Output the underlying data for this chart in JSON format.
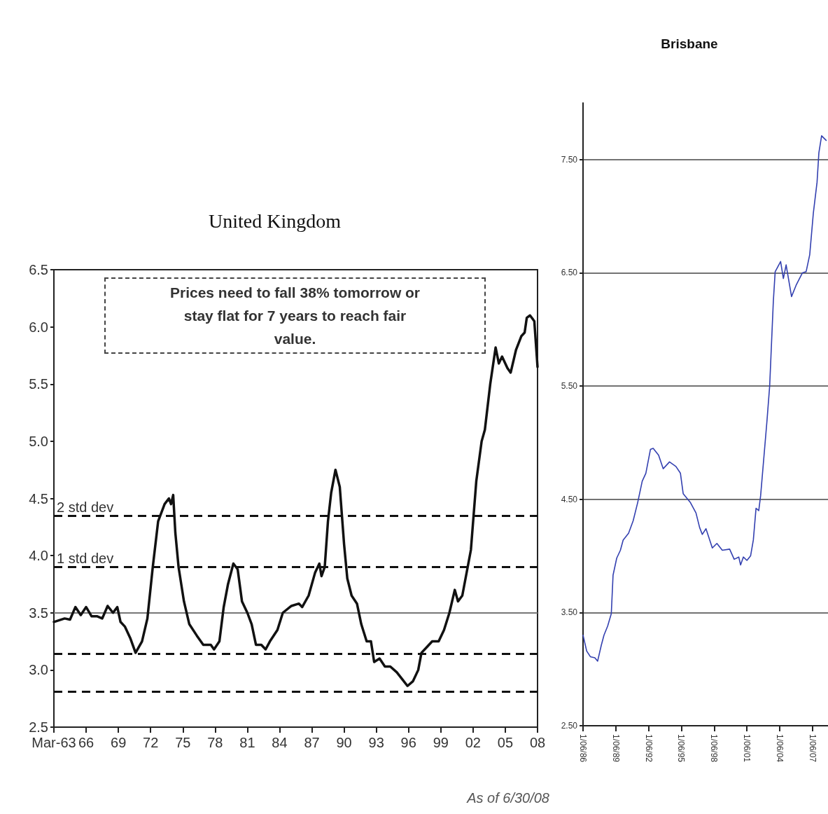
{
  "chart_data": [
    {
      "type": "line",
      "title": "United Kingdom",
      "annotations": [
        "Prices need to fall 38% tomorrow or stay flat for 7 years to reach fair value.",
        "As of 6/30/08"
      ],
      "series": [
        {
          "color": "#111111",
          "x": [
            1963,
            1964,
            1964.5,
            1965,
            1965.5,
            1966,
            1966.5,
            1967,
            1967.5,
            1968,
            1968.5,
            1968.9,
            1969.2,
            1969.6,
            1970.1,
            1970.6,
            1971.2,
            1971.7,
            1972.2,
            1972.7,
            1973.3,
            1973.7,
            1973.9,
            1974.1,
            1974.3,
            1974.6,
            1975.1,
            1975.6,
            1976.3,
            1976.9,
            1977.6,
            1977.9,
            1978.4,
            1978.8,
            1979.2,
            1979.7,
            1980.1,
            1980.5,
            1981,
            1981.4,
            1981.8,
            1982.3,
            1982.7,
            1983.1,
            1983.8,
            1984.3,
            1985.1,
            1985.8,
            1986.1,
            1986.7,
            1987.3,
            1987.7,
            1987.9,
            1988.2,
            1988.5,
            1988.8,
            1989.2,
            1989.6,
            1990,
            1990.3,
            1990.7,
            1991.2,
            1991.6,
            1992.1,
            1992.5,
            1992.8,
            1993.3,
            1993.8,
            1994.3,
            1994.9,
            1995.4,
            1995.9,
            1996.4,
            1996.9,
            1997.2,
            1997.7,
            1998.2,
            1998.8,
            1999.3,
            1999.8,
            2000.3,
            2000.6,
            2001,
            2001.5,
            2001.8,
            2002.3,
            2002.8,
            2003.1,
            2003.6,
            2004.1,
            2004.4,
            2004.7,
            2005.2,
            2005.5,
            2006,
            2006.5,
            2006.8,
            2007,
            2007.3,
            2007.7,
            2008
          ],
          "values": [
            3.42,
            3.45,
            3.44,
            3.55,
            3.48,
            3.55,
            3.47,
            3.47,
            3.45,
            3.56,
            3.5,
            3.55,
            3.42,
            3.38,
            3.28,
            3.15,
            3.25,
            3.45,
            3.9,
            4.3,
            4.45,
            4.5,
            4.45,
            4.53,
            4.2,
            3.9,
            3.6,
            3.4,
            3.3,
            3.22,
            3.22,
            3.18,
            3.25,
            3.55,
            3.75,
            3.93,
            3.88,
            3.6,
            3.5,
            3.4,
            3.22,
            3.22,
            3.18,
            3.25,
            3.35,
            3.5,
            3.56,
            3.58,
            3.55,
            3.65,
            3.85,
            3.93,
            3.82,
            3.9,
            4.3,
            4.55,
            4.75,
            4.6,
            4.1,
            3.8,
            3.65,
            3.58,
            3.4,
            3.25,
            3.25,
            3.07,
            3.1,
            3.03,
            3.03,
            2.98,
            2.92,
            2.86,
            2.9,
            3.0,
            3.15,
            3.2,
            3.25,
            3.25,
            3.35,
            3.5,
            3.7,
            3.6,
            3.65,
            3.9,
            4.05,
            4.65,
            5.0,
            5.1,
            5.5,
            5.82,
            5.68,
            5.74,
            5.64,
            5.6,
            5.8,
            5.92,
            5.95,
            6.08,
            6.1,
            6.05,
            5.65
          ]
        }
      ],
      "xlim": [
        1963,
        2008
      ],
      "xticks": [
        {
          "value": 1963,
          "label": "Mar-63"
        },
        {
          "value": 1966,
          "label": "66"
        },
        {
          "value": 1969,
          "label": "69"
        },
        {
          "value": 1972,
          "label": "72"
        },
        {
          "value": 1975,
          "label": "75"
        },
        {
          "value": 1978,
          "label": "78"
        },
        {
          "value": 1981,
          "label": "81"
        },
        {
          "value": 1984,
          "label": "84"
        },
        {
          "value": 1987,
          "label": "87"
        },
        {
          "value": 1990,
          "label": "90"
        },
        {
          "value": 1993,
          "label": "93"
        },
        {
          "value": 1996,
          "label": "96"
        },
        {
          "value": 1999,
          "label": "99"
        },
        {
          "value": 2002,
          "label": "02"
        },
        {
          "value": 2005,
          "label": "05"
        },
        {
          "value": 2008,
          "label": "08"
        }
      ],
      "ylim": [
        2.5,
        6.5
      ],
      "yticks": [
        2.5,
        {
          "value": 3,
          "label": "3.0"
        },
        3.5,
        {
          "value": 4,
          "label": "4.0"
        },
        4.5,
        {
          "value": 5,
          "label": "5.0"
        },
        5.5,
        {
          "value": 6,
          "label": "6.0"
        },
        6.5
      ],
      "ref_lines": [
        {
          "axis": "y",
          "value": 4.35,
          "label": "2 std dev",
          "color": "#111111",
          "line_style": "dashed"
        },
        {
          "axis": "y",
          "value": 3.9,
          "label": "1 std dev",
          "color": "#111111",
          "line_style": "dashed"
        },
        {
          "axis": "y",
          "value": 3.5,
          "label": null,
          "color": "#777777",
          "line_style": "solid"
        },
        {
          "axis": "y",
          "value": 3.14,
          "label": null,
          "color": "#111111",
          "line_style": "dashed"
        },
        {
          "axis": "y",
          "value": 2.81,
          "label": null,
          "color": "#111111",
          "line_style": "dashed"
        }
      ],
      "grid": false
    },
    {
      "type": "line",
      "title": "Brisbane",
      "series": [
        {
          "color": "#3340b0",
          "x": [
            "1986-06",
            "1986-10",
            "1987-02",
            "1987-07",
            "1987-10",
            "1988-02",
            "1988-05",
            "1988-09",
            "1989-01",
            "1989-03",
            "1989-07",
            "1989-11",
            "1990-02",
            "1990-08",
            "1991-01",
            "1991-06",
            "1991-11",
            "1992-03",
            "1992-08",
            "1992-11",
            "1993-05",
            "1993-10",
            "1994-05",
            "1994-12",
            "1995-05",
            "1995-08",
            "1996-04",
            "1996-10",
            "1997-02",
            "1997-05",
            "1997-09",
            "1998-04",
            "1998-09",
            "1999-03",
            "1999-11",
            "2000-04",
            "2000-09",
            "2000-11",
            "2001-02",
            "2001-06",
            "2001-10",
            "2002-01",
            "2002-04",
            "2002-07",
            "2002-09",
            "2003-04",
            "2003-07",
            "2003-11",
            "2004-01",
            "2004-07",
            "2004-10",
            "2005-01",
            "2005-07",
            "2005-12",
            "2006-07",
            "2006-11",
            "2007-03",
            "2007-07",
            "2007-11",
            "2008-01",
            "2008-04",
            "2008-09"
          ],
          "values": [
            3.3,
            3.16,
            3.11,
            3.1,
            3.07,
            3.21,
            3.3,
            3.38,
            3.49,
            3.83,
            3.98,
            4.05,
            4.14,
            4.2,
            4.31,
            4.47,
            4.66,
            4.73,
            4.94,
            4.95,
            4.89,
            4.77,
            4.83,
            4.79,
            4.73,
            4.55,
            4.47,
            4.38,
            4.25,
            4.19,
            4.24,
            4.07,
            4.11,
            4.05,
            4.06,
            3.97,
            3.99,
            3.92,
            3.99,
            3.96,
            4.0,
            4.14,
            4.42,
            4.4,
            4.53,
            5.19,
            5.5,
            6.25,
            6.51,
            6.6,
            6.45,
            6.57,
            6.29,
            6.39,
            6.5,
            6.51,
            6.66,
            7.03,
            7.3,
            7.56,
            7.71,
            7.67
          ]
        }
      ],
      "xlim": [
        "1986-06-01",
        "2008-11"
      ],
      "xticks": [
        {
          "value": "1986-06-01",
          "label": "1/06/86"
        },
        {
          "value": "1989-06-01",
          "label": "1/06/89"
        },
        {
          "value": "1992-06-01",
          "label": "1/06/92"
        },
        {
          "value": "1995-06-01",
          "label": "1/06/95"
        },
        {
          "value": "1998-06-01",
          "label": "1/06/98"
        },
        {
          "value": "2001-06-01",
          "label": "1/06/01"
        },
        {
          "value": "2004-06-01",
          "label": "1/06/04"
        },
        {
          "value": "2007-06-01",
          "label": "1/06/07"
        }
      ],
      "ylim": [
        2.5,
        8.0
      ],
      "yticks": [
        {
          "value": 2.5,
          "label": "2.50"
        },
        {
          "value": 3.5,
          "label": "3.50"
        },
        {
          "value": 4.5,
          "label": "4.50"
        },
        {
          "value": 5.5,
          "label": "5.50"
        },
        {
          "value": 6.5,
          "label": "6.50"
        },
        {
          "value": 7.5,
          "label": "7.50"
        }
      ],
      "grid": "y"
    }
  ]
}
